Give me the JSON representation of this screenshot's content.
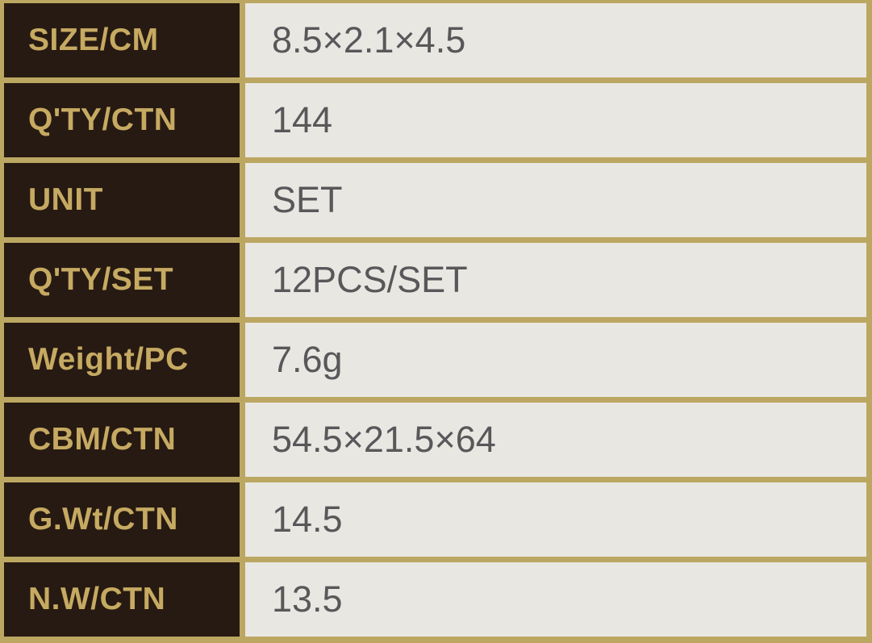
{
  "table": {
    "rows": [
      {
        "label": "SIZE/CM",
        "value": "8.5×2.1×4.5"
      },
      {
        "label": "Q'TY/CTN",
        "value": "144"
      },
      {
        "label": "UNIT",
        "value": "SET"
      },
      {
        "label": "Q'TY/SET",
        "value": "12PCS/SET"
      },
      {
        "label": "Weight/PC",
        "value": "7.6g"
      },
      {
        "label": "CBM/CTN",
        "value": "54.5×21.5×64"
      },
      {
        "label": "G.Wt/CTN",
        "value": "14.5"
      },
      {
        "label": "N.W/CTN",
        "value": "13.5"
      }
    ],
    "colors": {
      "border-gold": "#bca762",
      "label-bg": "#271a12",
      "label-text": "#c6aa62",
      "value-bg": "#e9e7e2",
      "value-text": "#58585a"
    }
  }
}
